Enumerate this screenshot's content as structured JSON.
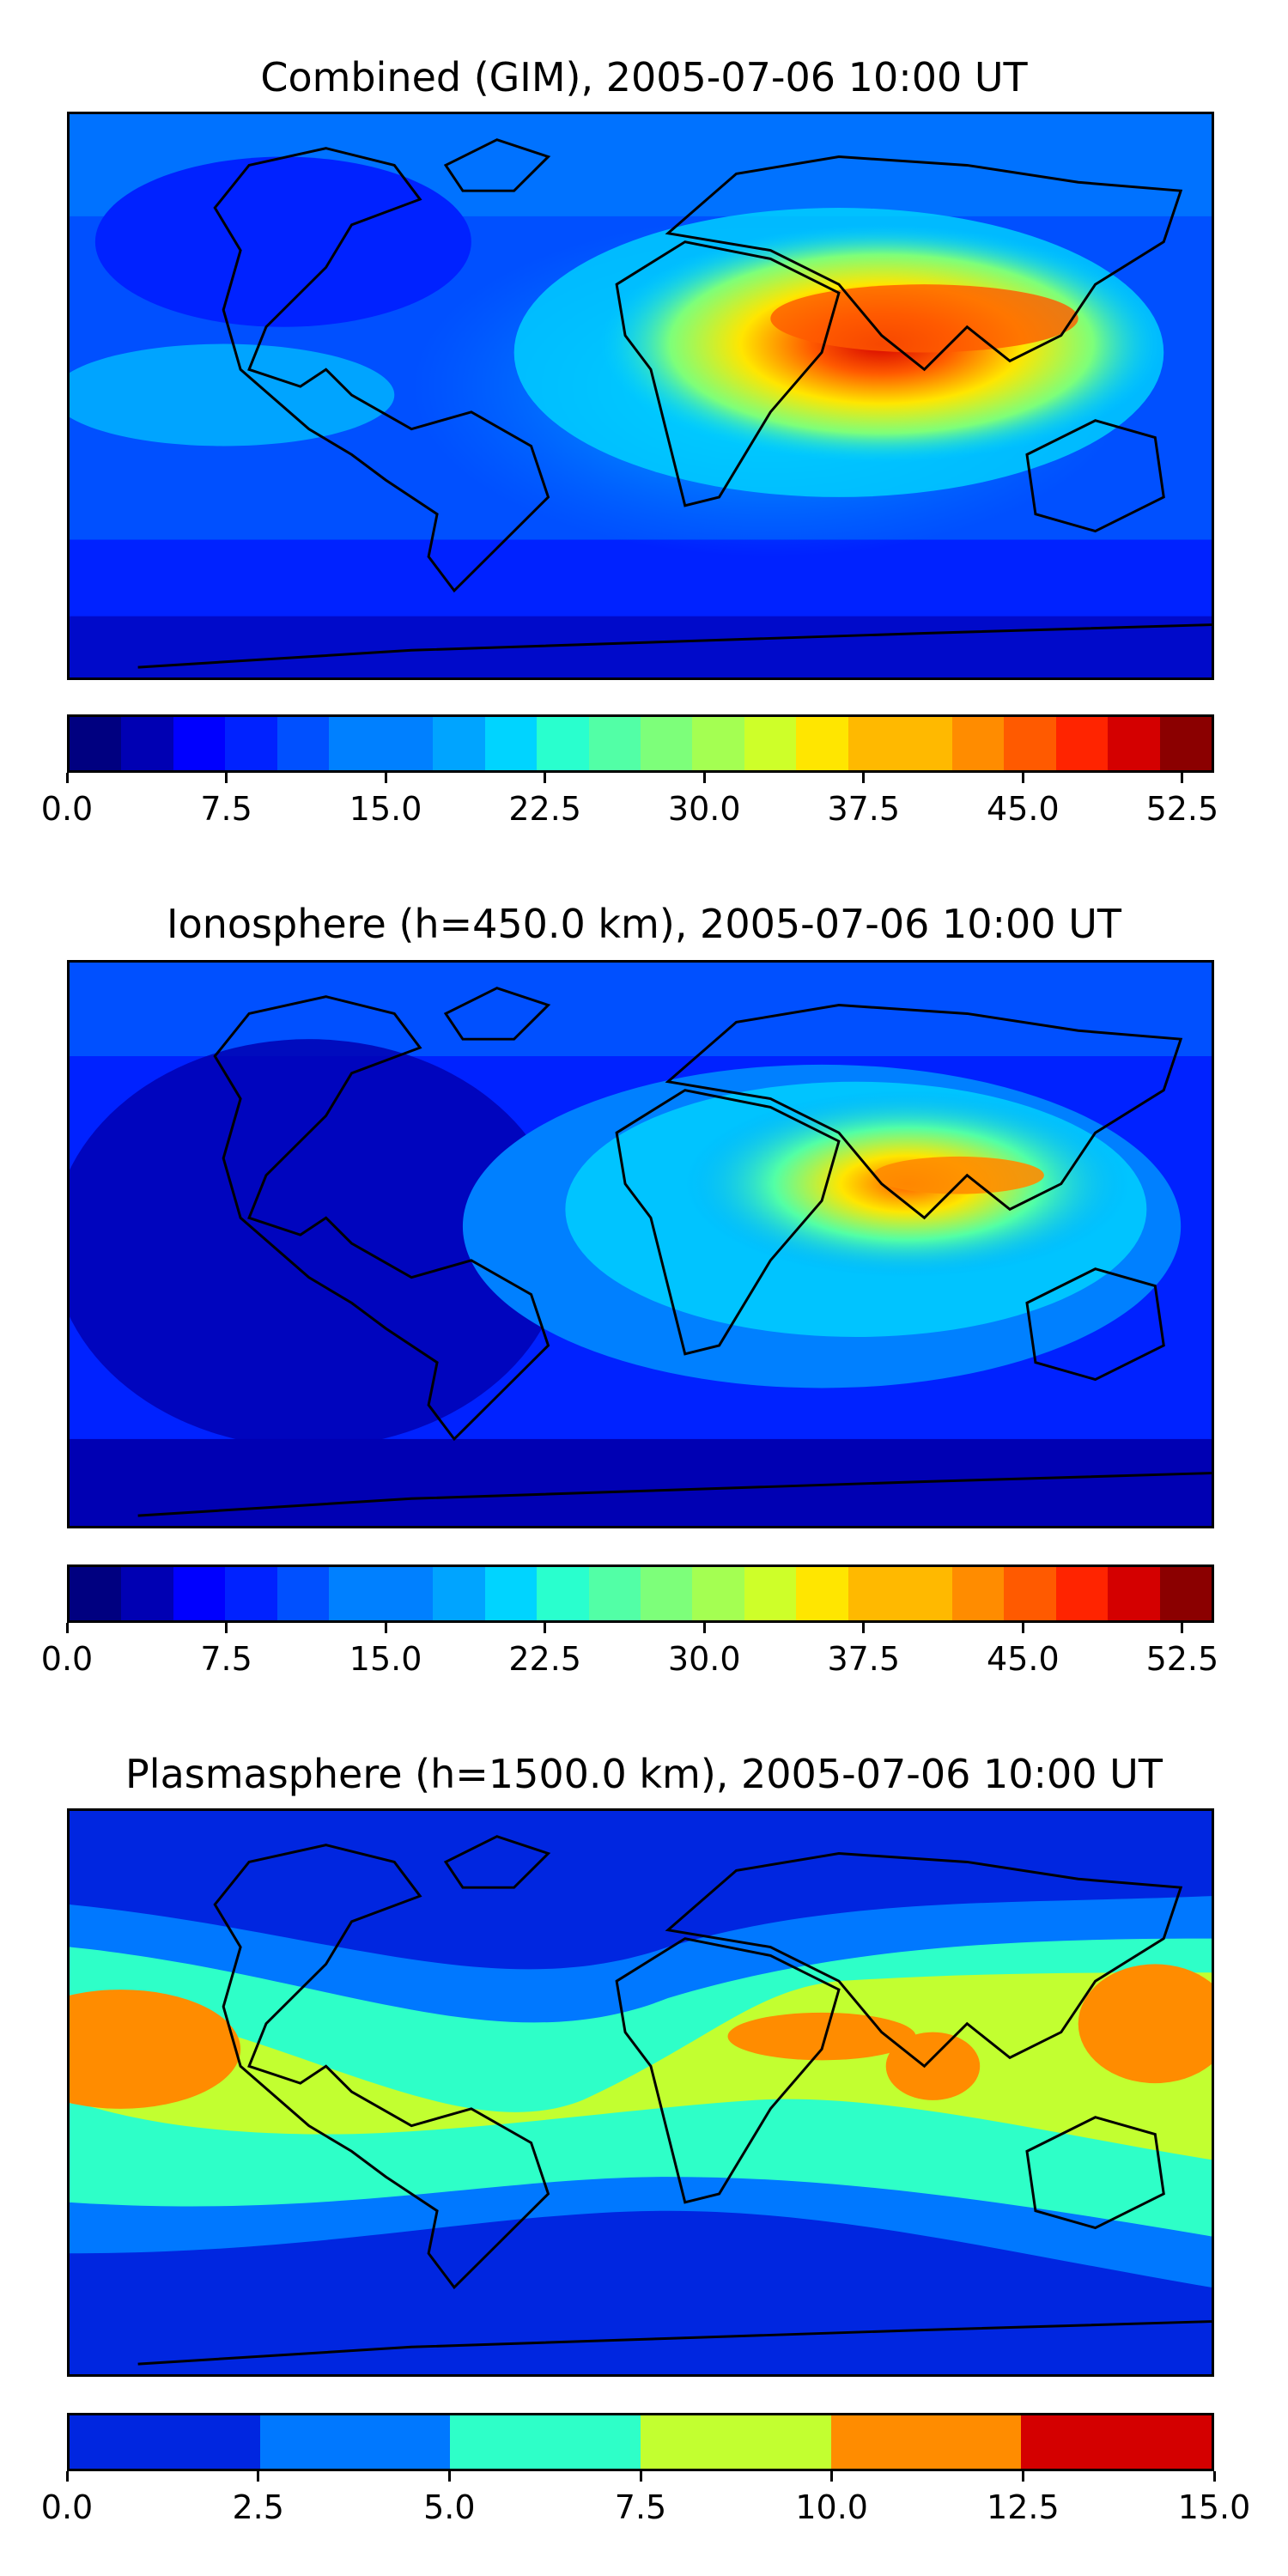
{
  "colors": {
    "levels18": [
      "#000080",
      "#0000b3",
      "#0000ff",
      "#0022ff",
      "#0050ff",
      "#0080ff",
      "#00a4ff",
      "#00d4ff",
      "#29ffce",
      "#52ffa6",
      "#7dff7a",
      "#a4ff52",
      "#ceff29",
      "#ffe600",
      "#ffb900",
      "#ff8c00",
      "#ff5a00",
      "#ff2400",
      "#d40000",
      "#8b0000"
    ],
    "levels6": [
      "#0026e0",
      "#0078ff",
      "#2effc8",
      "#c2ff30",
      "#ff8c00",
      "#d40000"
    ],
    "coast": "#000000"
  },
  "panels": [
    {
      "title": "Combined (GIM), 2005-07-06 10:00 UT",
      "ticks": [
        "0.0",
        "7.5",
        "15.0",
        "22.5",
        "30.0",
        "37.5",
        "45.0",
        "52.5"
      ],
      "tick_values": [
        0,
        7.5,
        15,
        22.5,
        30,
        37.5,
        45,
        52.5
      ],
      "range": [
        0,
        54
      ],
      "levels": 22
    },
    {
      "title": "Ionosphere  (h=450.0 km), 2005-07-06 10:00 UT",
      "ticks": [
        "0.0",
        "7.5",
        "15.0",
        "22.5",
        "30.0",
        "37.5",
        "45.0",
        "52.5"
      ],
      "tick_values": [
        0,
        7.5,
        15,
        22.5,
        30,
        37.5,
        45,
        52.5
      ],
      "range": [
        0,
        54
      ],
      "levels": 22
    },
    {
      "title": "Plasmasphere (h=1500.0 km), 2005-07-06 10:00 UT",
      "ticks": [
        "0.0",
        "2.5",
        "5.0",
        "7.5",
        "10.0",
        "12.5",
        "15.0"
      ],
      "tick_values": [
        0,
        2.5,
        5,
        7.5,
        10,
        12.5,
        15
      ],
      "range": [
        0,
        15
      ],
      "levels": 6
    }
  ]
}
